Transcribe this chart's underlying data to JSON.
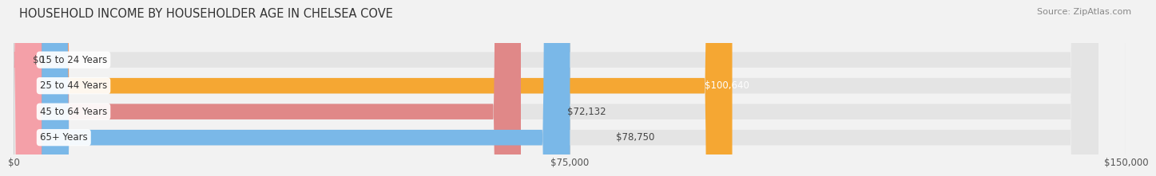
{
  "title": "HOUSEHOLD INCOME BY HOUSEHOLDER AGE IN CHELSEA COVE",
  "source": "Source: ZipAtlas.com",
  "categories": [
    "15 to 24 Years",
    "25 to 44 Years",
    "45 to 64 Years",
    "65+ Years"
  ],
  "values": [
    0,
    100640,
    72132,
    78750
  ],
  "bar_colors": [
    "#f4a0a8",
    "#f5a733",
    "#e08888",
    "#7ab8e8"
  ],
  "value_labels": [
    "$0",
    "$100,640",
    "$72,132",
    "$78,750"
  ],
  "value_label_inside": [
    false,
    true,
    false,
    false
  ],
  "xlim": [
    0,
    150000
  ],
  "xticks": [
    0,
    75000,
    150000
  ],
  "xtick_labels": [
    "$0",
    "$75,000",
    "$150,000"
  ],
  "background_color": "#f2f2f2",
  "bar_background_color": "#e4e4e4",
  "title_fontsize": 10.5,
  "source_fontsize": 8,
  "label_fontsize": 8.5,
  "value_fontsize": 8.5,
  "bar_height": 0.6,
  "figsize": [
    14.06,
    2.33
  ]
}
